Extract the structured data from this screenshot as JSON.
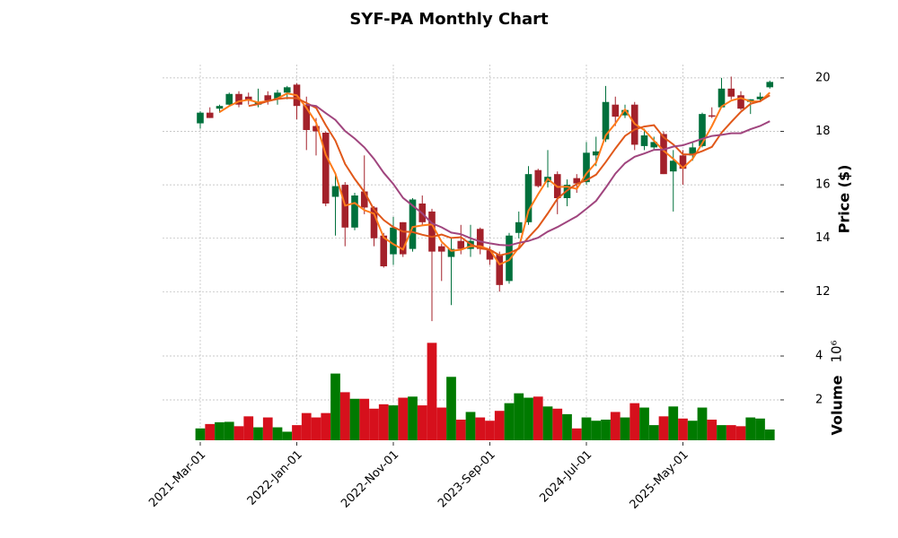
{
  "chart_data": {
    "type": "candlestick",
    "title": "SYF-PA Monthly Chart",
    "x": [
      "2021-Mar-01",
      "2021-Apr-01",
      "2021-May-01",
      "2021-Jun-01",
      "2021-Jul-01",
      "2021-Aug-01",
      "2021-Sep-01",
      "2021-Oct-01",
      "2021-Nov-01",
      "2021-Dec-01",
      "2022-Jan-01",
      "2022-Feb-01",
      "2022-Mar-01",
      "2022-Apr-01",
      "2022-May-01",
      "2022-Jun-01",
      "2022-Jul-01",
      "2022-Aug-01",
      "2022-Sep-01",
      "2022-Oct-01",
      "2022-Nov-01",
      "2022-Dec-01",
      "2023-Jan-01",
      "2023-Feb-01",
      "2023-Mar-01",
      "2023-Apr-01",
      "2023-May-01",
      "2023-Jun-01",
      "2023-Jul-01",
      "2023-Aug-01",
      "2023-Sep-01",
      "2023-Oct-01",
      "2023-Nov-01",
      "2023-Dec-01",
      "2024-Jan-01",
      "2024-Feb-01",
      "2024-Mar-01",
      "2024-Apr-01",
      "2024-May-01",
      "2024-Jun-01",
      "2024-Jul-01",
      "2024-Aug-01",
      "2024-Sep-01",
      "2024-Oct-01",
      "2024-Nov-01",
      "2024-Dec-01",
      "2025-Jan-01",
      "2025-Feb-01",
      "2025-Mar-01",
      "2025-Apr-01",
      "2025-May-01",
      "2025-Jun-01",
      "2025-Jul-01",
      "2025-Aug-01",
      "2025-Sep-01",
      "2025-Oct-01",
      "2025-Nov-01",
      "2025-Dec-01",
      "2026-Jan-01",
      "2026-Feb-01"
    ],
    "xticks": [
      "2021-Mar-01",
      "2022-Jan-01",
      "2022-Nov-01",
      "2023-Sep-01",
      "2024-Jul-01",
      "2025-May-01"
    ],
    "open": [
      18.3,
      18.7,
      18.85,
      19.0,
      19.4,
      19.3,
      19.0,
      19.35,
      19.2,
      19.45,
      19.75,
      19.0,
      18.2,
      17.95,
      15.55,
      16.0,
      14.4,
      15.75,
      15.15,
      14.1,
      13.4,
      14.6,
      13.6,
      15.3,
      15.0,
      13.7,
      13.3,
      13.9,
      13.6,
      14.35,
      13.55,
      13.4,
      12.4,
      14.2,
      14.6,
      16.55,
      16.1,
      16.4,
      15.5,
      16.25,
      16.1,
      17.1,
      17.7,
      19.0,
      18.6,
      19.0,
      17.45,
      17.4,
      17.9,
      16.5,
      17.1,
      17.1,
      17.45,
      18.6,
      18.9,
      19.6,
      19.35,
      19.1,
      19.2,
      19.65
    ],
    "high": [
      18.75,
      18.9,
      19.0,
      19.45,
      19.5,
      19.45,
      19.6,
      19.5,
      19.55,
      19.7,
      19.8,
      19.3,
      18.5,
      18.0,
      16.4,
      16.1,
      15.7,
      17.1,
      15.2,
      14.2,
      14.8,
      14.6,
      15.5,
      15.6,
      15.1,
      13.8,
      14.0,
      14.5,
      14.5,
      14.4,
      13.7,
      13.5,
      14.2,
      15.0,
      16.7,
      16.6,
      17.3,
      16.5,
      16.2,
      16.4,
      17.6,
      17.8,
      19.7,
      19.3,
      19.0,
      19.1,
      18.1,
      17.8,
      18.0,
      17.3,
      17.3,
      17.6,
      18.7,
      18.9,
      20.0,
      20.05,
      19.5,
      19.2,
      19.45,
      19.9
    ],
    "low": [
      18.1,
      18.5,
      18.7,
      18.95,
      18.9,
      19.0,
      18.9,
      19.0,
      19.0,
      19.2,
      18.45,
      17.3,
      17.1,
      15.2,
      14.1,
      13.7,
      14.3,
      14.9,
      13.7,
      12.9,
      13.0,
      13.3,
      13.5,
      14.5,
      10.9,
      12.4,
      11.5,
      13.4,
      13.3,
      13.4,
      13.0,
      12.0,
      12.3,
      14.0,
      14.5,
      15.9,
      15.9,
      14.9,
      15.2,
      15.7,
      16.0,
      16.7,
      17.6,
      18.2,
      18.5,
      17.3,
      17.3,
      17.3,
      16.4,
      15.0,
      16.0,
      16.9,
      17.4,
      18.5,
      18.9,
      19.2,
      18.8,
      18.65,
      19.1,
      19.6
    ],
    "close": [
      18.7,
      18.5,
      18.95,
      19.4,
      19.0,
      19.15,
      19.1,
      19.15,
      19.45,
      19.65,
      18.95,
      18.05,
      18.0,
      15.3,
      15.95,
      14.4,
      15.6,
      15.15,
      14.0,
      12.95,
      14.4,
      13.4,
      15.45,
      14.6,
      13.5,
      13.5,
      13.6,
      13.6,
      13.9,
      13.6,
      13.2,
      12.25,
      14.1,
      14.6,
      16.4,
      15.95,
      16.3,
      15.5,
      16.0,
      16.05,
      17.2,
      17.25,
      19.1,
      18.55,
      18.8,
      17.5,
      17.85,
      17.6,
      16.4,
      16.9,
      16.6,
      17.4,
      18.65,
      18.55,
      19.6,
      19.3,
      18.85,
      19.2,
      19.3,
      19.85
    ],
    "volume": [
      0.7,
      0.9,
      0.98,
      1.0,
      0.8,
      1.25,
      0.75,
      1.2,
      0.75,
      0.55,
      0.85,
      1.4,
      1.2,
      1.4,
      3.2,
      2.35,
      2.05,
      2.05,
      1.6,
      1.8,
      1.75,
      2.1,
      2.15,
      1.75,
      4.6,
      1.65,
      3.05,
      1.1,
      1.45,
      1.2,
      1.05,
      1.5,
      1.85,
      2.3,
      2.1,
      2.15,
      1.7,
      1.6,
      1.35,
      0.7,
      1.2,
      1.05,
      1.1,
      1.45,
      1.2,
      1.85,
      1.65,
      0.85,
      1.25,
      1.7,
      1.15,
      1.05,
      1.65,
      1.1,
      0.85,
      0.85,
      0.8,
      1.2,
      1.15,
      0.65
    ],
    "up_color": "#00703c",
    "down_color": "#a3212a",
    "volume_up_color": "#007a00",
    "volume_down_color": "#d6101c",
    "moving_averages": [
      {
        "color": "#ff7b1a",
        "values": [
          null,
          null,
          18.72,
          18.95,
          19.12,
          19.18,
          19.08,
          19.13,
          19.23,
          19.42,
          19.35,
          18.88,
          18.33,
          17.12,
          16.42,
          15.22,
          15.32,
          15.05,
          14.92,
          14.03,
          13.78,
          13.58,
          14.42,
          14.48,
          14.52,
          13.87,
          13.53,
          13.57,
          13.7,
          13.7,
          13.57,
          13.02,
          13.18,
          13.65,
          15.03,
          15.65,
          16.22,
          15.92,
          15.93,
          15.85,
          16.42,
          16.83,
          17.85,
          18.3,
          18.82,
          18.28,
          18.05,
          17.65,
          17.28,
          16.97,
          16.63,
          16.97,
          17.55,
          18.2,
          18.93,
          19.15,
          19.25,
          19.12,
          19.12,
          19.45
        ]
      },
      {
        "color": "#e0581a",
        "values": [
          null,
          null,
          null,
          null,
          null,
          18.95,
          19.02,
          19.13,
          19.21,
          19.25,
          19.24,
          19.06,
          18.88,
          18.23,
          17.65,
          16.78,
          16.22,
          15.73,
          15.07,
          14.68,
          14.42,
          14.25,
          14.23,
          14.13,
          14.05,
          14.14,
          14.01,
          14.04,
          13.78,
          13.62,
          13.57,
          13.36,
          13.44,
          13.61,
          14.03,
          14.42,
          14.93,
          15.48,
          15.79,
          16.03,
          16.17,
          16.38,
          16.85,
          17.36,
          17.83,
          18.07,
          18.18,
          18.23,
          17.78,
          17.51,
          17.14,
          17.13,
          17.26,
          17.42,
          17.95,
          18.35,
          18.73,
          19.03,
          19.13,
          19.35
        ]
      },
      {
        "color": "#a0457e",
        "values": [
          null,
          null,
          null,
          null,
          null,
          null,
          null,
          null,
          null,
          null,
          null,
          19.0,
          18.95,
          18.68,
          18.43,
          18.01,
          17.73,
          17.4,
          16.97,
          16.45,
          16.03,
          15.51,
          15.22,
          14.93,
          14.56,
          14.41,
          14.21,
          14.15,
          14.0,
          13.88,
          13.81,
          13.75,
          13.73,
          13.83,
          13.9,
          14.02,
          14.25,
          14.42,
          14.62,
          14.82,
          15.1,
          15.4,
          15.89,
          16.42,
          16.81,
          17.05,
          17.17,
          17.31,
          17.32,
          17.43,
          17.48,
          17.6,
          17.72,
          17.83,
          17.87,
          17.93,
          17.93,
          18.08,
          18.2,
          18.38
        ]
      }
    ],
    "ylabel": "Price ($)",
    "ylim": [
      10.5,
      20.5
    ],
    "yticks": [
      12,
      14,
      16,
      18,
      20
    ],
    "y2label": "Volume",
    "y2_scale_label": "10⁶",
    "y2lim": [
      0.16,
      4.9
    ],
    "y2ticks": [
      2,
      4
    ],
    "grid": true
  }
}
